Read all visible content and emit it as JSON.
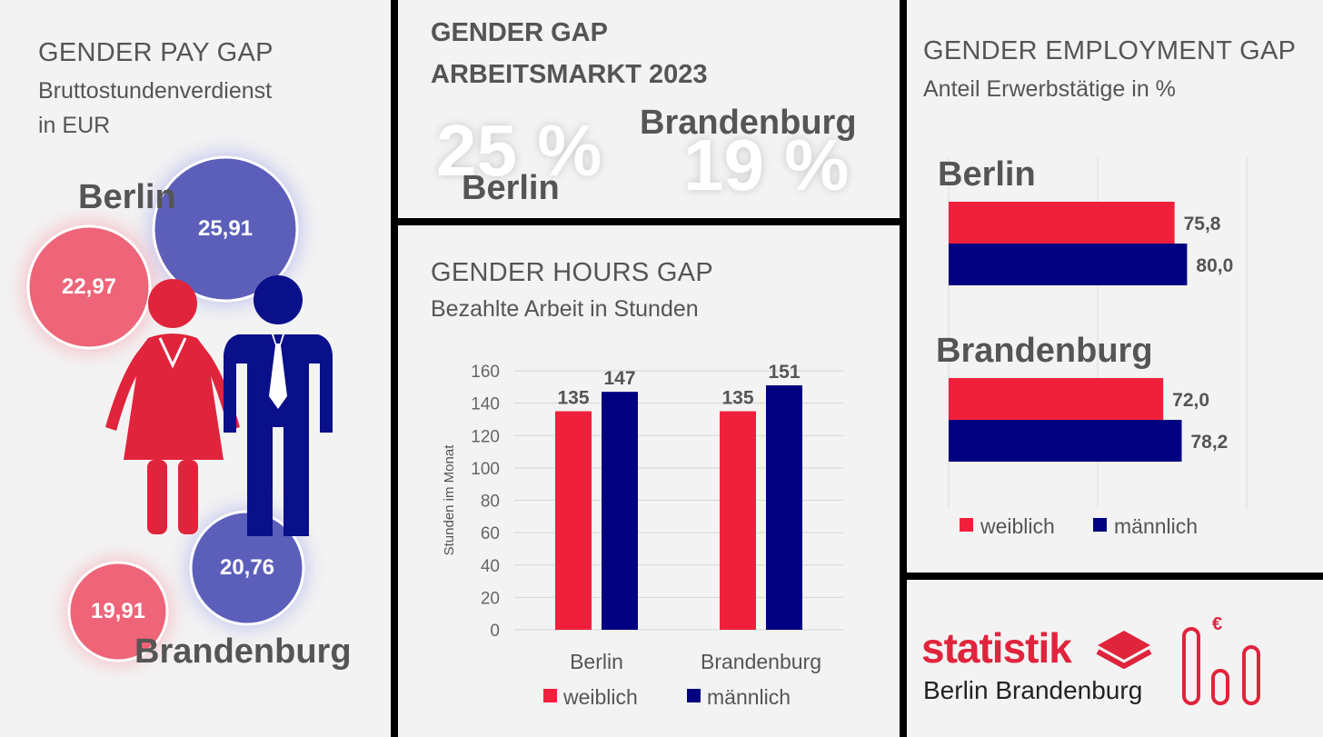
{
  "pay_gap": {
    "title": "GENDER PAY GAP",
    "subtitle_line1": "Bruttostundenverdienst",
    "subtitle_line2": "in EUR",
    "berlin_label": "Berlin",
    "brandenburg_label": "Brandenburg",
    "berlin_female": "22,97",
    "berlin_male": "25,91",
    "brandenburg_female": "19,91",
    "brandenburg_male": "20,76",
    "colors": {
      "female": "#e0243c",
      "male": "#0a0f8a",
      "female_circle": "#ee6478",
      "male_circle": "#5c5fba"
    }
  },
  "gap_summary": {
    "title_line1": "GENDER GAP",
    "title_line2": "ARBEITSMARKT 2023",
    "berlin_value": "25 %",
    "berlin_label": "Berlin",
    "brandenburg_value": "19 %",
    "brandenburg_label": "Brandenburg"
  },
  "hours_gap": {
    "title": "GENDER HOURS GAP",
    "subtitle": "Bezahlte Arbeit in Stunden"
  },
  "employment_gap": {
    "title": "GENDER EMPLOYMENT GAP",
    "subtitle": "Anteil Erwerbstätige in %"
  },
  "logo": {
    "word": "statistik",
    "region": "Berlin Brandenburg",
    "euro_symbol": "€"
  },
  "chart_data": [
    {
      "id": "hours",
      "type": "bar",
      "categories": [
        "Berlin",
        "Brandenburg"
      ],
      "series": [
        {
          "name": "weiblich",
          "values": [
            135,
            135
          ],
          "color": "#f0203c"
        },
        {
          "name": "männlich",
          "values": [
            147,
            151
          ],
          "color": "#000080"
        }
      ],
      "ylabel": "Stunden im Monat",
      "ylim": [
        0,
        160
      ],
      "yticks": [
        "0",
        "20",
        "40",
        "60",
        "80",
        "100",
        "120",
        "140",
        "160"
      ],
      "legend": "bottom",
      "grid": true
    },
    {
      "id": "employment",
      "type": "bar",
      "orientation": "horizontal",
      "categories": [
        "Berlin",
        "Brandenburg"
      ],
      "series": [
        {
          "name": "weiblich",
          "values": [
            75.8,
            72.0
          ],
          "labels": [
            "75,8",
            "72,0"
          ],
          "color": "#f0203c"
        },
        {
          "name": "männlich",
          "values": [
            80.0,
            78.2
          ],
          "labels": [
            "80,0",
            "78,2"
          ],
          "color": "#000080"
        }
      ],
      "xlim": [
        0,
        100
      ],
      "legend": "bottom",
      "grid": true
    }
  ]
}
